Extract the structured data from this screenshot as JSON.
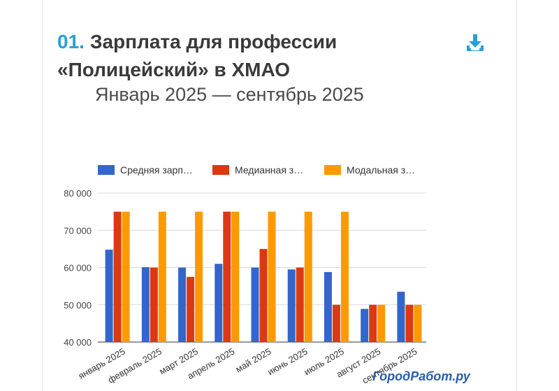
{
  "header": {
    "number": "01.",
    "title_line1": "Зарплата для профессии",
    "title_line2": "«Полицейский» в ХМАО",
    "subtitle": "Январь 2025 — сентябрь 2025"
  },
  "icons": {
    "download": "download-icon"
  },
  "watermark": "ГородРабот.ру",
  "colors": {
    "accent": "#2a9fd6",
    "average": "#3366cc",
    "median": "#dc3912",
    "modal": "#ff9900"
  },
  "chart_data": {
    "type": "bar",
    "categories": [
      "январь 2025",
      "февраль 2025",
      "март 2025",
      "апрель 2025",
      "май 2025",
      "июнь 2025",
      "июль 2025",
      "август 2025",
      "сентябрь 2025"
    ],
    "series": [
      {
        "name": "Средняя зарп…",
        "color": "#3366cc",
        "values": [
          64800,
          60100,
          60000,
          61000,
          60000,
          59500,
          58800,
          48900,
          53500
        ]
      },
      {
        "name": "Медианная з…",
        "color": "#dc3912",
        "values": [
          75000,
          60000,
          57500,
          75000,
          65000,
          60000,
          50000,
          50000,
          50000
        ]
      },
      {
        "name": "Модальная з…",
        "color": "#ff9900",
        "values": [
          75000,
          75000,
          75000,
          75000,
          75000,
          75000,
          75000,
          50000,
          50000
        ]
      }
    ],
    "yticks": [
      "40 000",
      "50 000",
      "60 000",
      "70 000",
      "80 000"
    ],
    "ylim": [
      40000,
      80000
    ],
    "grid": true,
    "legend": "top"
  }
}
